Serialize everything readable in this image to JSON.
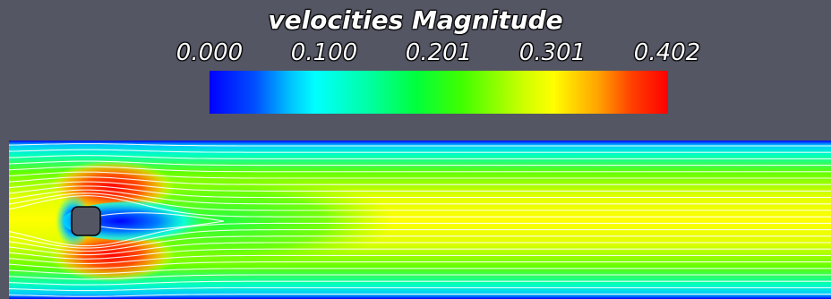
{
  "legend": {
    "title": "velocities Magnitude",
    "ticks": [
      "0.000",
      "0.100",
      "0.201",
      "0.301",
      "0.402"
    ],
    "range": [
      0.0,
      0.402
    ],
    "colormap": [
      "#0000ff",
      "#00ffff",
      "#00ff00",
      "#ffff00",
      "#ff0000"
    ]
  },
  "colors": {
    "background": "#545664",
    "streamline": "#ffffff",
    "obstacle": "#545664"
  }
}
